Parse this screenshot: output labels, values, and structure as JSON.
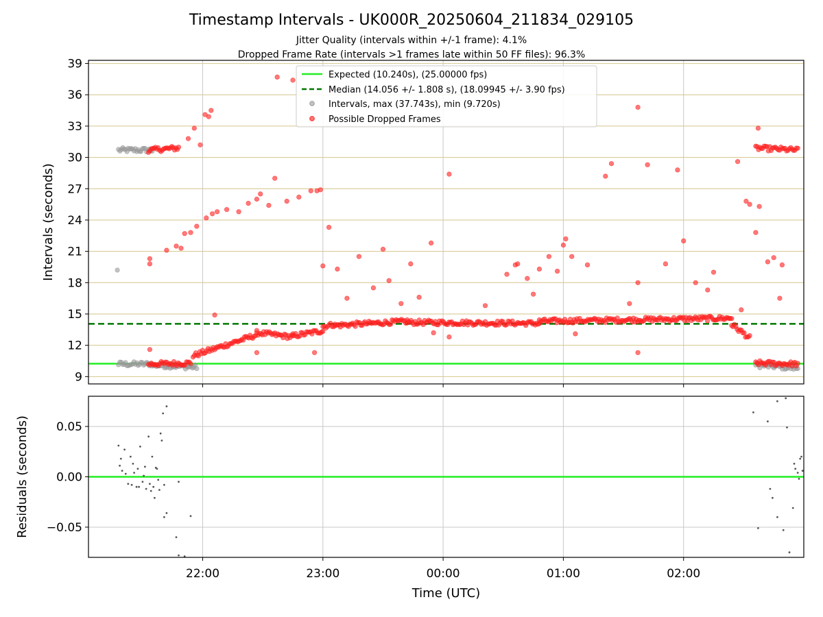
{
  "figure": {
    "title": "Timestamp Intervals - UK000R_20250604_211834_029105",
    "subtitle_1": "Jitter Quality (intervals within +/-1 frame): 4.1%",
    "subtitle_2": "Dropped Frame Rate (intervals >1 frames late within 50 FF files): 96.3%"
  },
  "colors": {
    "expected": "#22ee22",
    "median": "#007700",
    "intervals": "#999999",
    "dropped": "#ff2020",
    "hgrid_top": "#d4c48a",
    "grid": "#c8c8c8",
    "residual_points": "#555555"
  },
  "chart_data": [
    {
      "type": "scatter",
      "ylabel": "Intervals (seconds)",
      "ylim": [
        8.3,
        39.3
      ],
      "yticks": [
        9,
        12,
        15,
        18,
        21,
        24,
        27,
        30,
        33,
        36,
        39
      ],
      "ytick_labels": [
        "9",
        "12",
        "15",
        "18",
        "21",
        "24",
        "27",
        "30",
        "33",
        "36",
        "39"
      ],
      "x_unit": "hours UTC (21.0 = 21:00, 24.0 = 00:00)",
      "xlim": [
        21.05,
        27.0
      ],
      "xticks": [
        22,
        23,
        24,
        25,
        26
      ],
      "grid": true,
      "legend_position": "top-center",
      "lines": {
        "expected": {
          "label": "Expected (10.240s), (25.00000 fps)",
          "y": 10.24
        },
        "median": {
          "label": "Median (14.056 +/- 1.808 s), (18.09945 +/- 3.90 fps)",
          "y": 14.056
        }
      },
      "series": [
        {
          "name": "Intervals, max (37.743s), min (9.720s)",
          "note": "all intervals; grey points visible where no dropped frame",
          "segments": [
            {
              "x_start": 21.3,
              "x_end": 21.58,
              "y_start": 30.7,
              "y_end": 30.7
            },
            {
              "x_start": 21.3,
              "x_end": 21.58,
              "y_start": 10.2,
              "y_end": 10.2
            },
            {
              "x_start": 21.58,
              "x_end": 21.95,
              "y_start": 10.1,
              "y_end": 9.9
            },
            {
              "x_start": 26.6,
              "x_end": 26.95,
              "y_start": 10.1,
              "y_end": 9.8
            }
          ],
          "points": [
            [
              21.29,
              19.2
            ]
          ]
        },
        {
          "name": "Possible Dropped Frames",
          "segments": [
            {
              "x_start": 21.55,
              "x_end": 21.8,
              "y_start": 30.7,
              "y_end": 30.9
            },
            {
              "x_start": 21.55,
              "x_end": 21.9,
              "y_start": 10.2,
              "y_end": 10.3
            },
            {
              "x_start": 21.92,
              "x_end": 22.45,
              "y_start": 11.0,
              "y_end": 13.0
            },
            {
              "x_start": 22.45,
              "x_end": 22.75,
              "y_start": 13.2,
              "y_end": 12.8
            },
            {
              "x_start": 22.75,
              "x_end": 23.0,
              "y_start": 12.9,
              "y_end": 13.4
            },
            {
              "x_start": 23.0,
              "x_end": 23.1,
              "y_start": 13.8,
              "y_end": 14.0
            },
            {
              "x_start": 23.1,
              "x_end": 23.7,
              "y_start": 13.9,
              "y_end": 14.3
            },
            {
              "x_start": 23.7,
              "x_end": 24.8,
              "y_start": 14.2,
              "y_end": 14.1
            },
            {
              "x_start": 24.8,
              "x_end": 26.4,
              "y_start": 14.3,
              "y_end": 14.6
            },
            {
              "x_start": 26.4,
              "x_end": 26.55,
              "y_start": 14.0,
              "y_end": 12.7
            },
            {
              "x_start": 26.6,
              "x_end": 26.95,
              "y_start": 30.9,
              "y_end": 30.7
            },
            {
              "x_start": 26.6,
              "x_end": 26.95,
              "y_start": 10.3,
              "y_end": 10.2
            }
          ],
          "points": [
            [
              21.56,
              19.8
            ],
            [
              21.56,
              20.3
            ],
            [
              21.56,
              11.6
            ],
            [
              21.7,
              21.1
            ],
            [
              21.78,
              21.5
            ],
            [
              21.82,
              21.3
            ],
            [
              21.85,
              22.7
            ],
            [
              21.9,
              22.8
            ],
            [
              21.95,
              23.4
            ],
            [
              22.03,
              24.2
            ],
            [
              22.08,
              24.6
            ],
            [
              22.12,
              24.8
            ],
            [
              22.2,
              25.0
            ],
            [
              22.3,
              24.8
            ],
            [
              22.38,
              25.6
            ],
            [
              22.45,
              26.0
            ],
            [
              22.48,
              26.5
            ],
            [
              22.55,
              25.4
            ],
            [
              22.6,
              28.0
            ],
            [
              22.7,
              25.8
            ],
            [
              22.8,
              26.2
            ],
            [
              22.9,
              26.8
            ],
            [
              22.95,
              26.8
            ],
            [
              22.98,
              26.9
            ],
            [
              22.62,
              37.7
            ],
            [
              22.75,
              37.4
            ],
            [
              21.88,
              31.8
            ],
            [
              21.93,
              32.8
            ],
            [
              22.02,
              34.1
            ],
            [
              22.07,
              34.5
            ],
            [
              22.05,
              33.9
            ],
            [
              21.98,
              31.2
            ],
            [
              23.0,
              19.6
            ],
            [
              23.05,
              23.3
            ],
            [
              23.12,
              19.3
            ],
            [
              23.2,
              16.5
            ],
            [
              23.3,
              20.5
            ],
            [
              23.42,
              17.5
            ],
            [
              23.5,
              21.2
            ],
            [
              23.55,
              18.2
            ],
            [
              23.65,
              16.0
            ],
            [
              23.73,
              19.8
            ],
            [
              23.8,
              16.6
            ],
            [
              23.9,
              21.8
            ],
            [
              24.05,
              28.4
            ],
            [
              24.35,
              15.8
            ],
            [
              24.53,
              18.8
            ],
            [
              24.6,
              19.7
            ],
            [
              24.62,
              19.8
            ],
            [
              24.7,
              18.4
            ],
            [
              24.75,
              16.9
            ],
            [
              24.8,
              19.3
            ],
            [
              24.88,
              20.5
            ],
            [
              24.95,
              19.1
            ],
            [
              25.0,
              21.6
            ],
            [
              25.02,
              22.2
            ],
            [
              25.07,
              20.5
            ],
            [
              25.2,
              19.7
            ],
            [
              25.35,
              28.2
            ],
            [
              25.4,
              29.4
            ],
            [
              25.55,
              16.0
            ],
            [
              25.62,
              18.0
            ],
            [
              25.7,
              29.3
            ],
            [
              25.85,
              19.8
            ],
            [
              25.95,
              28.8
            ],
            [
              26.0,
              22.0
            ],
            [
              26.1,
              18.0
            ],
            [
              26.2,
              17.3
            ],
            [
              26.25,
              19.0
            ],
            [
              26.45,
              29.6
            ],
            [
              26.52,
              25.8
            ],
            [
              26.55,
              25.5
            ],
            [
              26.6,
              22.8
            ],
            [
              26.62,
              32.8
            ],
            [
              26.63,
              25.3
            ],
            [
              26.7,
              20.0
            ],
            [
              26.75,
              20.4
            ],
            [
              26.82,
              19.7
            ],
            [
              26.8,
              16.5
            ],
            [
              26.48,
              15.4
            ],
            [
              25.62,
              34.8
            ],
            [
              25.62,
              11.3
            ],
            [
              22.1,
              14.9
            ],
            [
              22.45,
              11.3
            ],
            [
              22.93,
              11.3
            ],
            [
              24.05,
              12.8
            ],
            [
              23.92,
              13.2
            ],
            [
              25.1,
              13.1
            ]
          ]
        }
      ]
    },
    {
      "type": "scatter",
      "ylabel": "Residuals (seconds)",
      "xlabel": "Time (UTC)",
      "ylim": [
        -0.08,
        0.08
      ],
      "yticks": [
        -0.05,
        0.0,
        0.05
      ],
      "ytick_labels": [
        "−0.05",
        "0.00",
        "0.05"
      ],
      "xlim": [
        21.05,
        27.0
      ],
      "xticks": [
        22,
        23,
        24,
        25,
        26
      ],
      "xtick_labels": [
        "22:00",
        "23:00",
        "00:00",
        "01:00",
        "02:00"
      ],
      "grid": true,
      "lines": {
        "zero": {
          "y": 0.0
        }
      },
      "series": [
        {
          "name": "residuals",
          "points": [
            [
              21.3,
              0.031
            ],
            [
              21.31,
              0.011
            ],
            [
              21.32,
              0.018
            ],
            [
              21.33,
              0.006
            ],
            [
              21.35,
              0.027
            ],
            [
              21.36,
              0.003
            ],
            [
              21.38,
              -0.007
            ],
            [
              21.4,
              0.02
            ],
            [
              21.41,
              -0.008
            ],
            [
              21.42,
              0.013
            ],
            [
              21.43,
              0.004
            ],
            [
              21.45,
              -0.01
            ],
            [
              21.46,
              0.008
            ],
            [
              21.47,
              -0.01
            ],
            [
              21.48,
              0.03
            ],
            [
              21.5,
              -0.005
            ],
            [
              21.51,
              0.001
            ],
            [
              21.52,
              0.01
            ],
            [
              21.53,
              -0.012
            ],
            [
              21.55,
              0.04
            ],
            [
              21.56,
              -0.007
            ],
            [
              21.57,
              -0.014
            ],
            [
              21.58,
              0.02
            ],
            [
              21.59,
              -0.01
            ],
            [
              21.6,
              -0.021
            ],
            [
              21.61,
              0.009
            ],
            [
              21.62,
              0.008
            ],
            [
              21.63,
              -0.003
            ],
            [
              21.64,
              -0.013
            ],
            [
              21.65,
              0.043
            ],
            [
              21.66,
              0.036
            ],
            [
              21.67,
              0.063
            ],
            [
              21.68,
              -0.008
            ],
            [
              21.7,
              0.07
            ],
            [
              21.68,
              -0.04
            ],
            [
              21.7,
              -0.036
            ],
            [
              21.78,
              -0.06
            ],
            [
              21.8,
              -0.005
            ],
            [
              21.9,
              -0.039
            ],
            [
              21.8,
              -0.078
            ],
            [
              21.85,
              -0.079
            ],
            [
              26.58,
              0.064
            ],
            [
              26.62,
              -0.051
            ],
            [
              26.7,
              0.055
            ],
            [
              26.72,
              -0.012
            ],
            [
              26.74,
              -0.021
            ],
            [
              26.78,
              0.075
            ],
            [
              26.78,
              -0.04
            ],
            [
              26.83,
              -0.053
            ],
            [
              26.85,
              0.078
            ],
            [
              26.86,
              0.049
            ],
            [
              26.88,
              -0.075
            ],
            [
              26.91,
              -0.031
            ],
            [
              26.92,
              0.013
            ],
            [
              26.93,
              0.008
            ],
            [
              26.95,
              0.004
            ],
            [
              26.96,
              -0.002
            ],
            [
              26.97,
              0.018
            ],
            [
              26.98,
              0.02
            ],
            [
              26.99,
              0.006
            ]
          ]
        }
      ]
    }
  ]
}
